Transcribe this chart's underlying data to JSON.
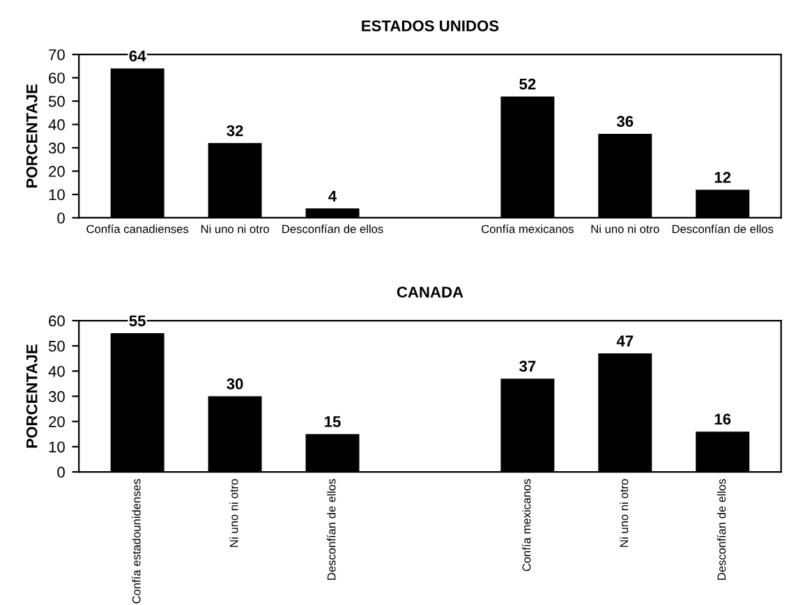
{
  "chart_data": [
    {
      "type": "bar",
      "title": "ESTADOS UNIDOS",
      "ylabel": "PORCENTAJE",
      "categories": [
        "Confía canadienses",
        "Ni uno ni otro",
        "Desconfían de ellos",
        null,
        "Confía mexicanos",
        "Ni uno ni otro",
        "Desconfían de ellos"
      ],
      "values": [
        64,
        32,
        4,
        null,
        52,
        36,
        12
      ],
      "color": "#000000",
      "ylim": [
        0,
        70
      ],
      "yticks": [
        0,
        10,
        20,
        30,
        40,
        50,
        60,
        70
      ],
      "grid": false,
      "data_labels": true
    },
    {
      "type": "bar",
      "title": "CANADA",
      "ylabel": "PORCENTAJE",
      "categories": [
        "Confía estadounidenses",
        "Ni uno ni otro",
        "Desconfían de ellos",
        null,
        "Confía mexicanos",
        "Ni uno ni otro",
        "Desconfían de ellos"
      ],
      "values": [
        55,
        30,
        15,
        null,
        37,
        47,
        16
      ],
      "color": "#000000",
      "ylim": [
        0,
        60
      ],
      "yticks": [
        0,
        10,
        20,
        30,
        40,
        50,
        60
      ],
      "grid": false,
      "data_labels": true
    }
  ]
}
